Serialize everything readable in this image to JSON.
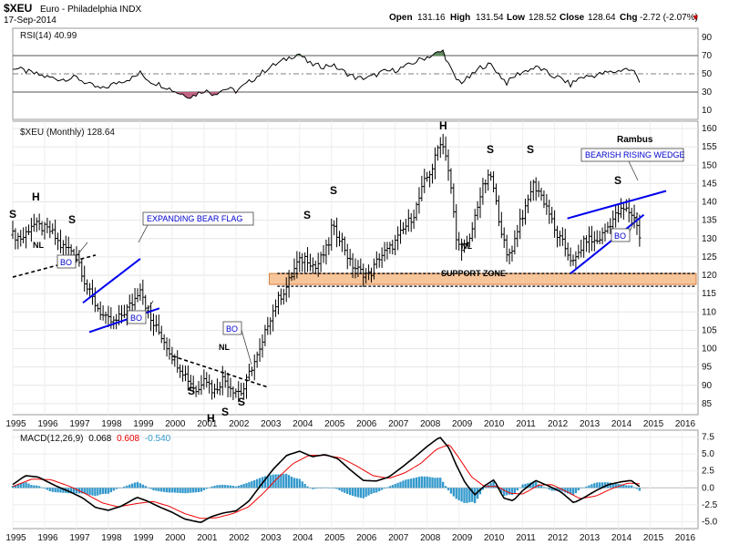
{
  "header": {
    "symbol": "$XEU",
    "name": "Euro - Philadelphia INDX",
    "date": "17-Sep-2014",
    "open_label": "Open",
    "open": "131.16",
    "high_label": "High",
    "high": "131.54",
    "low_label": "Low",
    "low": "128.52",
    "close_label": "Close",
    "close": "128.64",
    "chg_label": "Chg",
    "chg": "-2.72 (-2.07%)",
    "chg_arrow": "▼"
  },
  "rsi_panel": {
    "label": "RSI(14) 40.99",
    "ticks": [
      "90",
      "70",
      "50",
      "30",
      "10"
    ]
  },
  "price_panel": {
    "label": "$XEU (Monthly) 128.64",
    "ticks": [
      "160",
      "155",
      "150",
      "145",
      "140",
      "135",
      "130",
      "125",
      "120",
      "115",
      "110",
      "105",
      "100",
      "95",
      "90",
      "85"
    ],
    "years": [
      "1995",
      "1996",
      "1997",
      "1998",
      "1999",
      "2000",
      "2001",
      "2002",
      "2003",
      "2004",
      "2005",
      "2006",
      "2007",
      "2008",
      "2009",
      "2010",
      "2011",
      "2012",
      "2013",
      "2014",
      "2015",
      "2016"
    ]
  },
  "macd_panel": {
    "label_prefix": "MACD(12,26,9)",
    "macd_value": "0.068",
    "signal_value": "0.608",
    "hist_value": "-0.540",
    "ticks": [
      "7.5",
      "5.0",
      "2.5",
      "0.0",
      "-2.5",
      "-5.0"
    ]
  },
  "annotations": {
    "author": "Rambus",
    "expanding_bear_flag": "EXPANDING BEAR FLAG",
    "bearish_rising_wedge": "BEARISH RISING WEDGE",
    "support_zone": "SUPPORT ZONE",
    "bo": "BO",
    "nl": "NL",
    "h": "H",
    "s": "S"
  },
  "colors": {
    "price_bars": "#000000",
    "rsi_line": "#000000",
    "rsi_overbought_fill": "#5a8a5a",
    "rsi_oversold_fill": "#c06080",
    "support_zone": "#f7c59a",
    "support_zone_border": "#d2691e",
    "trendline": "#0000ee",
    "macd_line": "#000000",
    "signal_line": "#ee0000",
    "histogram": "#3399cc",
    "header_neg": "#cc0000"
  },
  "chart_data": {
    "type": "ohlc",
    "title": "$XEU Euro - Philadelphia INDX (Monthly)",
    "x_range": [
      1995.0,
      2016.5
    ],
    "price_ylim": [
      82,
      162
    ],
    "price_anchors": [
      [
        1995.0,
        131
      ],
      [
        1995.3,
        130
      ],
      [
        1995.6,
        134
      ],
      [
        1995.9,
        133
      ],
      [
        1996.2,
        132
      ],
      [
        1996.5,
        128
      ],
      [
        1996.8,
        127
      ],
      [
        1997.0,
        126
      ],
      [
        1997.3,
        117
      ],
      [
        1997.6,
        112
      ],
      [
        1997.9,
        108
      ],
      [
        1998.2,
        107
      ],
      [
        1998.5,
        110
      ],
      [
        1998.8,
        113
      ],
      [
        1999.0,
        117
      ],
      [
        1999.3,
        108
      ],
      [
        1999.7,
        103
      ],
      [
        2000.0,
        98
      ],
      [
        2000.4,
        93
      ],
      [
        2000.8,
        88
      ],
      [
        2001.0,
        93
      ],
      [
        2001.3,
        88
      ],
      [
        2001.6,
        92
      ],
      [
        2001.9,
        89
      ],
      [
        2002.2,
        88
      ],
      [
        2002.5,
        95
      ],
      [
        2002.8,
        100
      ],
      [
        2003.0,
        107
      ],
      [
        2003.3,
        113
      ],
      [
        2003.6,
        117
      ],
      [
        2003.9,
        123
      ],
      [
        2004.2,
        125
      ],
      [
        2004.5,
        122
      ],
      [
        2004.9,
        128
      ],
      [
        2005.0,
        133
      ],
      [
        2005.3,
        130
      ],
      [
        2005.6,
        123
      ],
      [
        2005.9,
        121
      ],
      [
        2006.2,
        120
      ],
      [
        2006.5,
        125
      ],
      [
        2006.8,
        127
      ],
      [
        2007.0,
        129
      ],
      [
        2007.3,
        133
      ],
      [
        2007.6,
        137
      ],
      [
        2007.9,
        145
      ],
      [
        2008.2,
        150
      ],
      [
        2008.4,
        157
      ],
      [
        2008.6,
        153
      ],
      [
        2008.8,
        140
      ],
      [
        2008.9,
        130
      ],
      [
        2009.0,
        128
      ],
      [
        2009.3,
        128
      ],
      [
        2009.6,
        140
      ],
      [
        2009.8,
        145
      ],
      [
        2010.0,
        147
      ],
      [
        2010.2,
        138
      ],
      [
        2010.5,
        125
      ],
      [
        2010.7,
        128
      ],
      [
        2010.9,
        135
      ],
      [
        2011.1,
        138
      ],
      [
        2011.3,
        145
      ],
      [
        2011.5,
        143
      ],
      [
        2011.8,
        138
      ],
      [
        2012.0,
        132
      ],
      [
        2012.3,
        128
      ],
      [
        2012.6,
        123
      ],
      [
        2012.8,
        127
      ],
      [
        2013.0,
        130
      ],
      [
        2013.3,
        129
      ],
      [
        2013.5,
        131
      ],
      [
        2013.8,
        135
      ],
      [
        2014.0,
        137
      ],
      [
        2014.2,
        138
      ],
      [
        2014.4,
        137
      ],
      [
        2014.6,
        134
      ],
      [
        2014.7,
        128.64
      ]
    ],
    "rsi_ylim": [
      0,
      100
    ],
    "rsi_levels": [
      70,
      50,
      30
    ],
    "rsi_anchors": [
      [
        1995.0,
        57
      ],
      [
        1995.5,
        52
      ],
      [
        1996.0,
        47
      ],
      [
        1996.5,
        44
      ],
      [
        1997.0,
        46
      ],
      [
        1997.4,
        38
      ],
      [
        1997.8,
        33
      ],
      [
        1998.3,
        41
      ],
      [
        1998.8,
        46
      ],
      [
        1999.0,
        51
      ],
      [
        1999.3,
        42
      ],
      [
        1999.8,
        36
      ],
      [
        2000.2,
        29
      ],
      [
        2000.6,
        25
      ],
      [
        2001.0,
        32
      ],
      [
        2001.3,
        28
      ],
      [
        2001.7,
        34
      ],
      [
        2002.0,
        31
      ],
      [
        2002.3,
        38
      ],
      [
        2002.7,
        48
      ],
      [
        2003.0,
        56
      ],
      [
        2003.4,
        63
      ],
      [
        2003.8,
        70
      ],
      [
        2004.0,
        72
      ],
      [
        2004.3,
        61
      ],
      [
        2004.7,
        58
      ],
      [
        2005.0,
        60
      ],
      [
        2005.4,
        52
      ],
      [
        2005.8,
        45
      ],
      [
        2006.2,
        46
      ],
      [
        2006.6,
        52
      ],
      [
        2007.0,
        54
      ],
      [
        2007.4,
        59
      ],
      [
        2007.8,
        66
      ],
      [
        2008.2,
        71
      ],
      [
        2008.5,
        75
      ],
      [
        2008.7,
        58
      ],
      [
        2008.9,
        44
      ],
      [
        2009.1,
        41
      ],
      [
        2009.4,
        48
      ],
      [
        2009.7,
        58
      ],
      [
        2010.0,
        60
      ],
      [
        2010.3,
        48
      ],
      [
        2010.5,
        40
      ],
      [
        2010.8,
        49
      ],
      [
        2011.2,
        55
      ],
      [
        2011.5,
        57
      ],
      [
        2011.9,
        48
      ],
      [
        2012.2,
        45
      ],
      [
        2012.5,
        38
      ],
      [
        2012.8,
        46
      ],
      [
        2013.2,
        48
      ],
      [
        2013.6,
        51
      ],
      [
        2014.0,
        53
      ],
      [
        2014.2,
        56
      ],
      [
        2014.5,
        52
      ],
      [
        2014.7,
        40.99
      ]
    ],
    "macd_ylim": [
      -6,
      8.5
    ],
    "macd_anchors": [
      [
        1995.0,
        0.5
      ],
      [
        1995.4,
        1.8
      ],
      [
        1995.8,
        1.6
      ],
      [
        1996.3,
        0.4
      ],
      [
        1996.8,
        -0.6
      ],
      [
        1997.2,
        -1.5
      ],
      [
        1997.6,
        -2.9
      ],
      [
        1998.0,
        -3.3
      ],
      [
        1998.4,
        -2.7
      ],
      [
        1998.9,
        -1.4
      ],
      [
        1999.2,
        -1.9
      ],
      [
        1999.6,
        -2.8
      ],
      [
        2000.0,
        -3.6
      ],
      [
        2000.4,
        -4.6
      ],
      [
        2000.9,
        -5.1
      ],
      [
        2001.2,
        -4.3
      ],
      [
        2001.6,
        -3.7
      ],
      [
        2002.0,
        -3.4
      ],
      [
        2002.4,
        -2.0
      ],
      [
        2002.8,
        0.5
      ],
      [
        2003.2,
        2.9
      ],
      [
        2003.6,
        4.8
      ],
      [
        2004.0,
        5.4
      ],
      [
        2004.4,
        4.6
      ],
      [
        2004.8,
        4.9
      ],
      [
        2005.2,
        4.3
      ],
      [
        2005.6,
        2.6
      ],
      [
        2006.0,
        1.1
      ],
      [
        2006.4,
        1.0
      ],
      [
        2006.8,
        1.6
      ],
      [
        2007.2,
        3.0
      ],
      [
        2007.6,
        4.5
      ],
      [
        2008.0,
        6.1
      ],
      [
        2008.4,
        7.5
      ],
      [
        2008.7,
        5.8
      ],
      [
        2008.9,
        3.5
      ],
      [
        2009.2,
        0.7
      ],
      [
        2009.5,
        -1.0
      ],
      [
        2009.8,
        0.3
      ],
      [
        2010.1,
        1.2
      ],
      [
        2010.4,
        -1.5
      ],
      [
        2010.7,
        -1.9
      ],
      [
        2011.0,
        -0.4
      ],
      [
        2011.4,
        1.1
      ],
      [
        2011.8,
        0.3
      ],
      [
        2012.2,
        -0.6
      ],
      [
        2012.6,
        -2.2
      ],
      [
        2012.9,
        -1.5
      ],
      [
        2013.3,
        -0.4
      ],
      [
        2013.7,
        0.5
      ],
      [
        2014.1,
        0.9
      ],
      [
        2014.4,
        1.1
      ],
      [
        2014.7,
        0.068
      ]
    ],
    "signal_anchors": [
      [
        1995.0,
        0.2
      ],
      [
        1995.6,
        1.3
      ],
      [
        1996.2,
        1.2
      ],
      [
        1996.8,
        0.2
      ],
      [
        1997.3,
        -0.9
      ],
      [
        1997.8,
        -2.2
      ],
      [
        1998.3,
        -2.8
      ],
      [
        1998.9,
        -2.3
      ],
      [
        1999.4,
        -2.0
      ],
      [
        1999.9,
        -2.7
      ],
      [
        2000.4,
        -3.8
      ],
      [
        2000.9,
        -4.5
      ],
      [
        2001.4,
        -4.4
      ],
      [
        2001.9,
        -3.8
      ],
      [
        2002.4,
        -2.8
      ],
      [
        2002.9,
        -0.6
      ],
      [
        2003.3,
        1.4
      ],
      [
        2003.8,
        3.6
      ],
      [
        2004.3,
        4.8
      ],
      [
        2004.8,
        4.8
      ],
      [
        2005.3,
        4.4
      ],
      [
        2005.8,
        3.2
      ],
      [
        2006.3,
        1.8
      ],
      [
        2006.8,
        1.4
      ],
      [
        2007.3,
        2.2
      ],
      [
        2007.8,
        3.6
      ],
      [
        2008.3,
        5.7
      ],
      [
        2008.7,
        6.4
      ],
      [
        2009.0,
        4.4
      ],
      [
        2009.4,
        1.6
      ],
      [
        2009.8,
        0.2
      ],
      [
        2010.2,
        0.2
      ],
      [
        2010.6,
        -0.8
      ],
      [
        2011.0,
        -0.9
      ],
      [
        2011.5,
        0.4
      ],
      [
        2011.9,
        0.5
      ],
      [
        2012.4,
        -0.6
      ],
      [
        2012.8,
        -1.6
      ],
      [
        2013.3,
        -1.2
      ],
      [
        2013.8,
        -0.1
      ],
      [
        2014.3,
        0.7
      ],
      [
        2014.7,
        0.608
      ]
    ],
    "support_zone": [
      117.5,
      120.5
    ],
    "support_lines": [
      120.5,
      117.0
    ],
    "trendlines": [
      {
        "name": "left-neckline",
        "style": "dashed",
        "points": [
          [
            1995.0,
            119.5
          ],
          [
            1997.6,
            125.5
          ]
        ]
      },
      {
        "name": "flag-upper",
        "style": "solid",
        "points": [
          [
            1997.2,
            112.5
          ],
          [
            1999.0,
            124.5
          ]
        ]
      },
      {
        "name": "flag-lower",
        "style": "solid",
        "points": [
          [
            1997.4,
            104.5
          ],
          [
            1999.6,
            111.0
          ]
        ]
      },
      {
        "name": "hs-neckline-2001",
        "style": "dashed",
        "points": [
          [
            2000.0,
            98.0
          ],
          [
            2003.0,
            89.5
          ]
        ]
      },
      {
        "name": "wedge-upper",
        "style": "solid",
        "points": [
          [
            2012.4,
            135.5
          ],
          [
            2015.5,
            143.0
          ]
        ]
      },
      {
        "name": "wedge-lower",
        "style": "solid",
        "points": [
          [
            2012.5,
            120.5
          ],
          [
            2014.8,
            136.5
          ]
        ]
      }
    ]
  }
}
